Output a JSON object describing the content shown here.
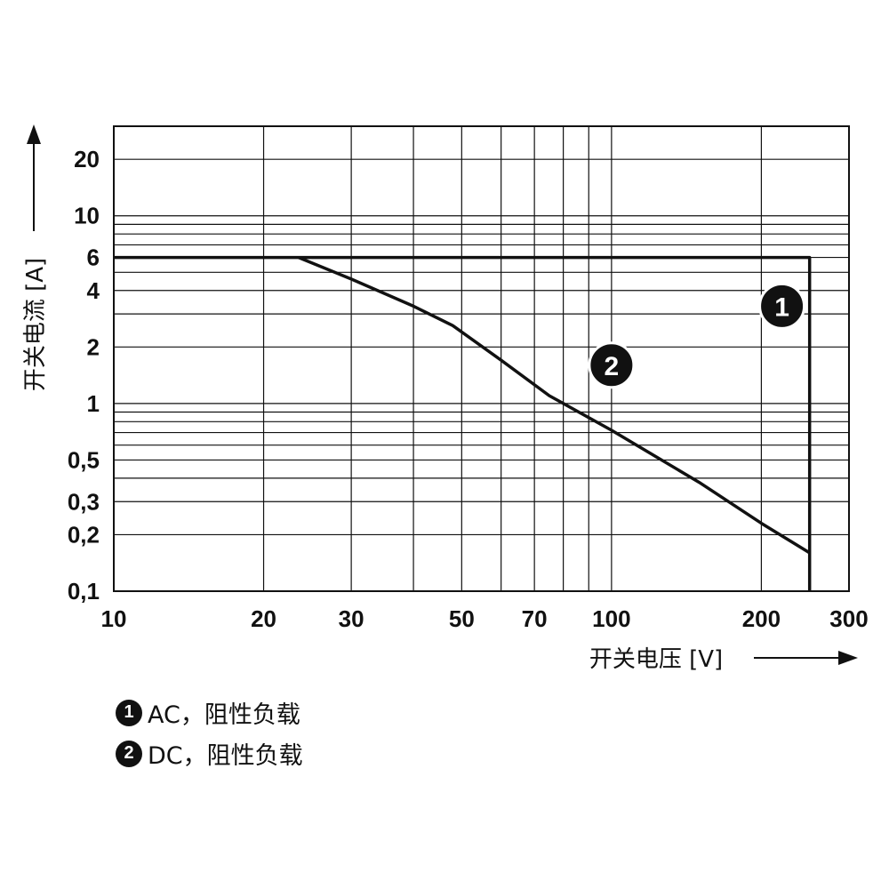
{
  "chart_data": {
    "type": "line",
    "xlabel": "开关电压 [V]",
    "ylabel": "开关电流 [A]",
    "x_scale": "log",
    "y_scale": "log",
    "xlim": [
      10,
      300
    ],
    "ylim": [
      0.1,
      30
    ],
    "x_ticks": [
      "10",
      "20",
      "30",
      "50",
      "70",
      "100",
      "200",
      "300"
    ],
    "y_ticks": [
      "20",
      "10",
      "6",
      "4",
      "2",
      "1",
      "0,5",
      "0,3",
      "0,2",
      "0,1"
    ],
    "grid": true,
    "series": [
      {
        "name": "1",
        "points": [
          [
            10,
            6
          ],
          [
            250,
            6
          ],
          [
            250,
            0.1
          ]
        ]
      },
      {
        "name": "2",
        "points": [
          [
            23.5,
            6
          ],
          [
            30,
            4.6
          ],
          [
            40,
            3.3
          ],
          [
            48,
            2.6
          ],
          [
            60,
            1.7
          ],
          [
            75,
            1.1
          ],
          [
            100,
            0.72
          ],
          [
            150,
            0.38
          ],
          [
            200,
            0.23
          ],
          [
            250,
            0.16
          ]
        ]
      }
    ],
    "annotations": [
      {
        "label": "1",
        "x": 220,
        "y": 3.3
      },
      {
        "label": "2",
        "x": 100,
        "y": 1.6
      }
    ]
  },
  "legend": [
    {
      "marker": "1",
      "text": "AC，阻性负载"
    },
    {
      "marker": "2",
      "text": "DC，阻性负载"
    }
  ]
}
